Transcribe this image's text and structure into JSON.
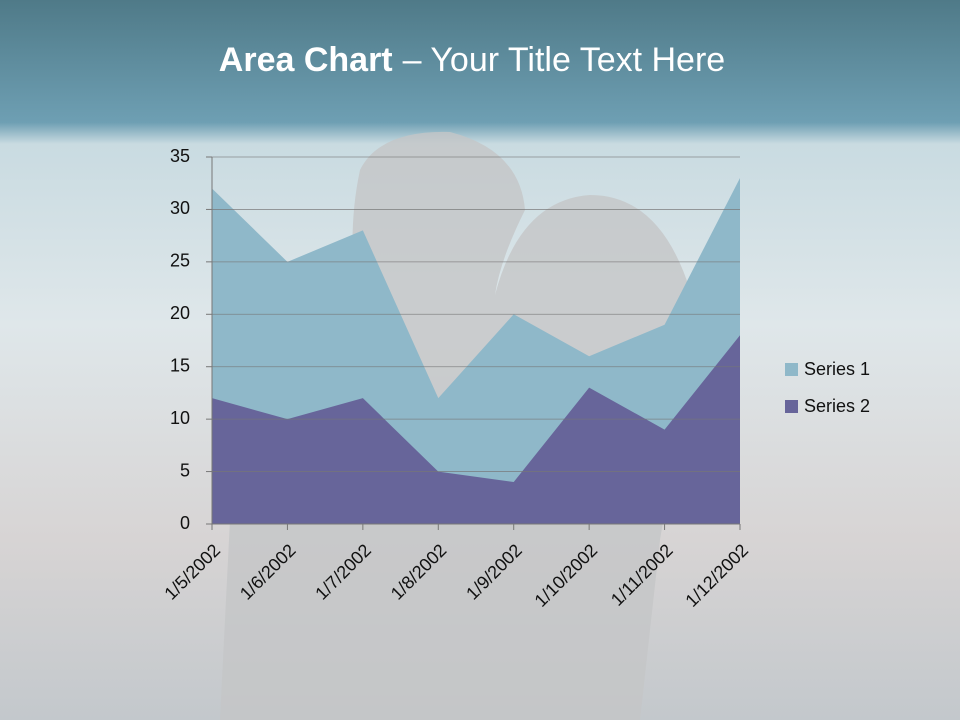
{
  "chart_data": {
    "type": "area",
    "title": [
      "Area Chart",
      "– Your Title Text Here"
    ],
    "categories": [
      "1/5/2002",
      "1/6/2002",
      "1/7/2002",
      "1/8/2002",
      "1/9/2002",
      "1/10/2002",
      "1/11/2002",
      "1/12/2002"
    ],
    "series": [
      {
        "name": "Series 1",
        "color": "#8fb8c9",
        "values": [
          32,
          25,
          28,
          12,
          20,
          16,
          19,
          33
        ]
      },
      {
        "name": "Series 2",
        "color": "#67659a",
        "values": [
          12,
          10,
          12,
          5,
          4,
          13,
          9,
          18
        ]
      }
    ],
    "ylim": [
      0,
      35
    ],
    "yticks": [
      0,
      5,
      10,
      15,
      20,
      25,
      30,
      35
    ],
    "grid": true,
    "legend": "right"
  }
}
